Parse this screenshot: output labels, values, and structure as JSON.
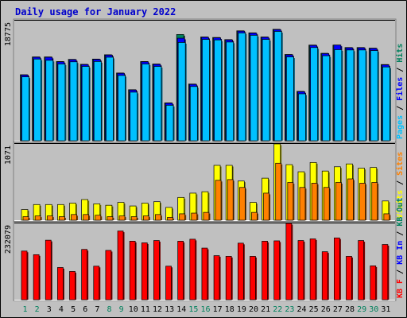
{
  "chart_data": {
    "type": "bar",
    "title": "Daily usage for January 2022",
    "colors": {
      "hits": "#00805c",
      "files": "#0000ff",
      "pages": "#00c0ff",
      "visits": "#ffff00",
      "sites": "#ff8000",
      "kb": "#ff0000",
      "kb_in": "#0000ff",
      "kb_out": "#00805c",
      "panel_bg": "#c0c0c0",
      "weekend_day": "#00805c",
      "weekday_day": "#000000"
    },
    "x": {
      "days": [
        "1",
        "2",
        "3",
        "4",
        "5",
        "6",
        "7",
        "8",
        "9",
        "10",
        "11",
        "12",
        "13",
        "14",
        "15",
        "16",
        "17",
        "18",
        "19",
        "20",
        "21",
        "22",
        "23",
        "24",
        "25",
        "26",
        "27",
        "28",
        "29",
        "30",
        "31"
      ],
      "weekend": [
        true,
        true,
        false,
        false,
        false,
        false,
        false,
        true,
        true,
        false,
        false,
        false,
        false,
        false,
        true,
        true,
        false,
        false,
        false,
        false,
        false,
        true,
        true,
        false,
        false,
        false,
        false,
        false,
        true,
        true,
        false
      ]
    },
    "panels": [
      {
        "id": "hits",
        "ytick": "18775",
        "ymax": 18775,
        "side_label": [
          {
            "text": "Pages",
            "color": "#00c0ff"
          },
          {
            "text": " / ",
            "color": "#000000"
          },
          {
            "text": "Files",
            "color": "#0000ff"
          },
          {
            "text": " / ",
            "color": "#000000"
          },
          {
            "text": "Hits",
            "color": "#00805c"
          }
        ],
        "series": [
          {
            "name": "Hits",
            "values": [
              10750,
              13650,
              13650,
              12900,
              13250,
              12450,
              13300,
              14000,
              11030,
              8310,
              12900,
              12500,
              6170,
              17300,
              9230,
              16900,
              16820,
              16470,
              17900,
              17570,
              16900,
              18150,
              14050,
              8040,
              15580,
              14240,
              15580,
              15180,
              15180,
              15080,
              12410
            ]
          },
          {
            "name": "Files",
            "values": [
              10700,
              13600,
              13600,
              12850,
              13200,
              12400,
              13250,
              13950,
              10980,
              8260,
              12850,
              12450,
              6120,
              16700,
              9180,
              16850,
              16770,
              16420,
              17850,
              17520,
              16850,
              18100,
              14000,
              7990,
              15530,
              14190,
              15580,
              15130,
              15130,
              15030,
              12360
            ]
          },
          {
            "name": "Pages",
            "values": [
              10400,
              13300,
              13100,
              12500,
              12850,
              12100,
              12900,
              13600,
              10630,
              7910,
              12500,
              12100,
              5770,
              16000,
              8830,
              16500,
              16420,
              16070,
              17550,
              17170,
              16500,
              17800,
              13650,
              7640,
              15180,
              13840,
              14830,
              14780,
              14780,
              14680,
              12010
            ]
          }
        ]
      },
      {
        "id": "visits",
        "ytick": "1071",
        "ymax": 1071,
        "side_label": [
          {
            "text": "Visits",
            "color": "#ffff00"
          },
          {
            "text": " / ",
            "color": "#000000"
          },
          {
            "text": "Sites",
            "color": "#ff8000"
          }
        ],
        "series": [
          {
            "name": "Visits",
            "values": [
              150,
              220,
              220,
              220,
              240,
              290,
              230,
              210,
              250,
              200,
              240,
              260,
              180,
              320,
              380,
              400,
              770,
              770,
              550,
              250,
              590,
              1071,
              780,
              680,
              810,
              690,
              750,
              790,
              730,
              740,
              270
            ]
          },
          {
            "name": "Sites",
            "values": [
              50,
              60,
              60,
              50,
              80,
              80,
              70,
              50,
              60,
              50,
              60,
              80,
              40,
              90,
              100,
              110,
              560,
              570,
              460,
              110,
              380,
              800,
              530,
              460,
              520,
              460,
              530,
              580,
              520,
              530,
              90
            ]
          }
        ]
      },
      {
        "id": "kbytes",
        "ytick": "232079",
        "ymax": 232079,
        "side_label": [
          {
            "text": "KB F",
            "color": "#ff0000"
          },
          {
            "text": " / ",
            "color": "#000000"
          },
          {
            "text": "KB In",
            "color": "#0000ff"
          },
          {
            "text": " / ",
            "color": "#000000"
          },
          {
            "text": "KB Out",
            "color": "#00805c"
          }
        ],
        "series": [
          {
            "name": "KB F",
            "values": [
              148000,
              137000,
              181000,
              98000,
              86000,
              153000,
              102000,
              150000,
              209000,
              178000,
              173000,
              180000,
              102000,
              178000,
              184000,
              157000,
              134000,
              132000,
              172000,
              132000,
              178000,
              179000,
              232079,
              180000,
              185000,
              146000,
              188000,
              132000,
              180000,
              103000,
              168000
            ]
          }
        ]
      }
    ]
  }
}
